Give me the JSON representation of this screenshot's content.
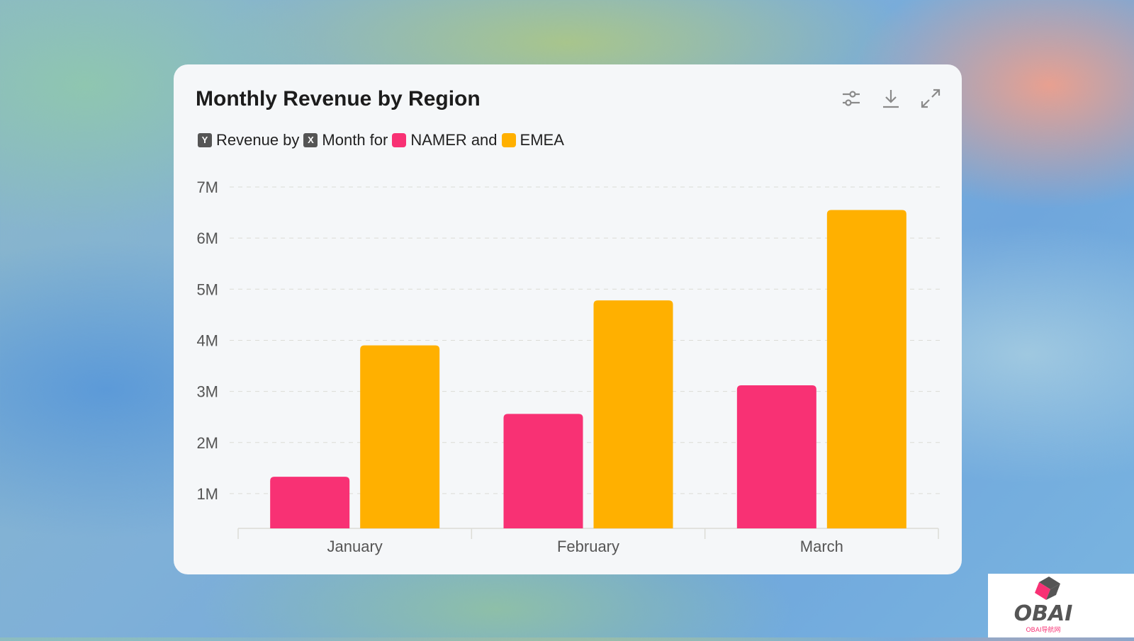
{
  "card": {
    "title": "Monthly Revenue by Region",
    "legend": {
      "y_tag": "Y",
      "text1": "Revenue by",
      "x_tag": "X",
      "text2": "Month for",
      "series1": "NAMER",
      "text3": "and",
      "series2": "EMEA"
    },
    "icons": [
      "settings-sliders-icon",
      "download-icon",
      "expand-icon"
    ]
  },
  "chart_data": {
    "type": "bar",
    "title": "Monthly Revenue by Region",
    "categories": [
      "January",
      "February",
      "March"
    ],
    "series": [
      {
        "name": "NAMER",
        "color": "#f83174",
        "values": [
          1.33,
          2.56,
          3.12
        ]
      },
      {
        "name": "EMEA",
        "color": "#ffb000",
        "values": [
          3.9,
          4.78,
          6.55
        ]
      }
    ],
    "unit": "M",
    "ylim": [
      0.32,
      7
    ],
    "yticks": [
      1,
      2,
      3,
      4,
      5,
      6,
      7
    ],
    "ytick_labels": [
      "1M",
      "2M",
      "3M",
      "4M",
      "5M",
      "6M",
      "7M"
    ],
    "grid": true,
    "legend": "top-left"
  },
  "watermark": {
    "brand": "OBAI",
    "sub": "OBAI导航网"
  }
}
